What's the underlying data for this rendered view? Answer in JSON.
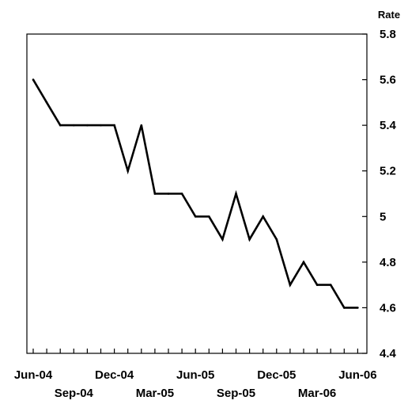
{
  "chart_data": {
    "type": "line",
    "title": "",
    "xlabel": "",
    "ylabel": "Rate",
    "ylim": [
      4.4,
      5.8
    ],
    "yticks": [
      4.4,
      4.6,
      4.8,
      5.0,
      5.2,
      5.4,
      5.6,
      5.8
    ],
    "ytick_labels": [
      "4.4",
      "4.6",
      "4.8",
      "5",
      "5.2",
      "5.4",
      "5.6",
      "5.8"
    ],
    "y_axis_side": "right",
    "grid": false,
    "legend": "none",
    "x": [
      "Jun-04",
      "Jul-04",
      "Aug-04",
      "Sep-04",
      "Oct-04",
      "Nov-04",
      "Dec-04",
      "Jan-05",
      "Feb-05",
      "Mar-05",
      "Apr-05",
      "May-05",
      "Jun-05",
      "Jul-05",
      "Aug-05",
      "Sep-05",
      "Oct-05",
      "Nov-05",
      "Dec-05",
      "Jan-06",
      "Feb-06",
      "Mar-06",
      "Apr-06",
      "May-06",
      "Jun-06"
    ],
    "x_label_rows": [
      [
        "Jun-04",
        "Dec-04",
        "Jun-05",
        "Dec-05",
        "Jun-06"
      ],
      [
        "Sep-04",
        "Mar-05",
        "Sep-05",
        "Mar-06"
      ]
    ],
    "series": [
      {
        "color": "#000000",
        "values": [
          5.6,
          5.5,
          5.4,
          5.4,
          5.4,
          5.4,
          5.4,
          5.2,
          5.4,
          5.1,
          5.1,
          5.1,
          5.0,
          5.0,
          4.9,
          5.1,
          4.9,
          5.0,
          4.9,
          4.7,
          4.8,
          4.7,
          4.7,
          4.6,
          4.6
        ]
      }
    ]
  }
}
